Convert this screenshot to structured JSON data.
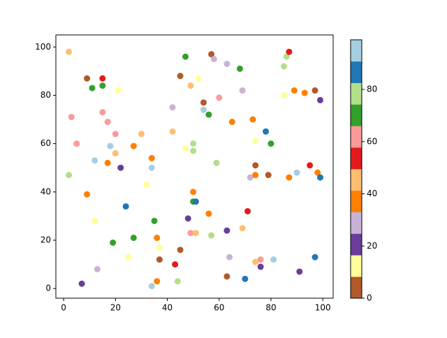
{
  "chart_data": {
    "type": "scatter",
    "x": [
      2,
      9,
      15,
      11,
      15,
      21,
      3,
      15,
      17,
      5,
      20,
      18,
      12,
      20,
      17,
      22,
      2,
      9,
      24,
      12,
      19,
      27,
      25,
      13,
      7,
      34,
      36,
      37,
      37,
      36,
      35,
      32,
      34,
      34,
      27,
      30,
      42,
      42,
      45,
      47,
      49,
      52,
      57,
      58,
      63,
      54,
      54,
      56,
      60,
      68,
      69,
      65,
      73,
      74,
      78,
      80,
      50,
      47,
      50,
      59,
      74,
      72,
      74,
      79,
      87,
      90,
      95,
      98,
      99,
      85,
      86,
      87,
      89,
      93,
      97,
      99,
      85,
      50,
      50,
      51,
      56,
      48,
      49,
      51,
      57,
      63,
      71,
      69,
      64,
      76,
      74,
      81,
      76,
      91,
      97,
      70,
      63,
      45,
      43,
      44
    ],
    "y": [
      98,
      87,
      87,
      83,
      84,
      82,
      71,
      73,
      69,
      60,
      64,
      59,
      53,
      56,
      52,
      50,
      47,
      39,
      34,
      28,
      19,
      21,
      13,
      8,
      2,
      1,
      3,
      12,
      17,
      21,
      28,
      43,
      50,
      54,
      59,
      64,
      65,
      75,
      88,
      96,
      84,
      87,
      97,
      95,
      93,
      77,
      74,
      72,
      79,
      91,
      82,
      69,
      70,
      61,
      65,
      60,
      60,
      58,
      57,
      52,
      51,
      46,
      47,
      47,
      46,
      48,
      51,
      48,
      46,
      92,
      96,
      98,
      82,
      81,
      82,
      78,
      80,
      40,
      36,
      36,
      31,
      29,
      23,
      23,
      22,
      24,
      32,
      25,
      13,
      12,
      11,
      12,
      9,
      7,
      13,
      4,
      5,
      16,
      10,
      3
    ],
    "c": [
      45,
      4,
      53,
      70,
      70,
      12,
      62,
      62,
      62,
      62,
      62,
      95,
      95,
      45,
      37,
      20,
      78,
      37,
      86,
      12,
      70,
      70,
      12,
      28,
      20,
      95,
      37,
      4,
      12,
      37,
      70,
      12,
      95,
      37,
      37,
      45,
      45,
      28,
      4,
      70,
      45,
      12,
      4,
      28,
      28,
      4,
      95,
      70,
      62,
      70,
      28,
      37,
      37,
      12,
      86,
      70,
      78,
      12,
      78,
      78,
      4,
      28,
      37,
      4,
      37,
      95,
      53,
      37,
      86,
      78,
      78,
      53,
      37,
      37,
      4,
      20,
      12,
      37,
      70,
      86,
      37,
      20,
      62,
      45,
      78,
      20,
      53,
      45,
      28,
      62,
      45,
      95,
      20,
      20,
      86,
      86,
      4,
      4,
      53,
      78
    ],
    "colors": [
      "#b15928",
      "#ffff99",
      "#6a3d9a",
      "#cab2d6",
      "#ff7f00",
      "#fdbf6f",
      "#e31a1c",
      "#fb9a99",
      "#33a02c",
      "#b2df8a",
      "#1f78b4",
      "#a6cee3"
    ],
    "xlim": [
      -3,
      104
    ],
    "ylim": [
      -4,
      105
    ],
    "xticks": [
      0,
      20,
      40,
      60,
      80,
      100
    ],
    "yticks": [
      0,
      20,
      40,
      60,
      80,
      100
    ],
    "clim": [
      0,
      99
    ],
    "cticks": [
      0,
      20,
      40,
      60,
      80
    ]
  }
}
